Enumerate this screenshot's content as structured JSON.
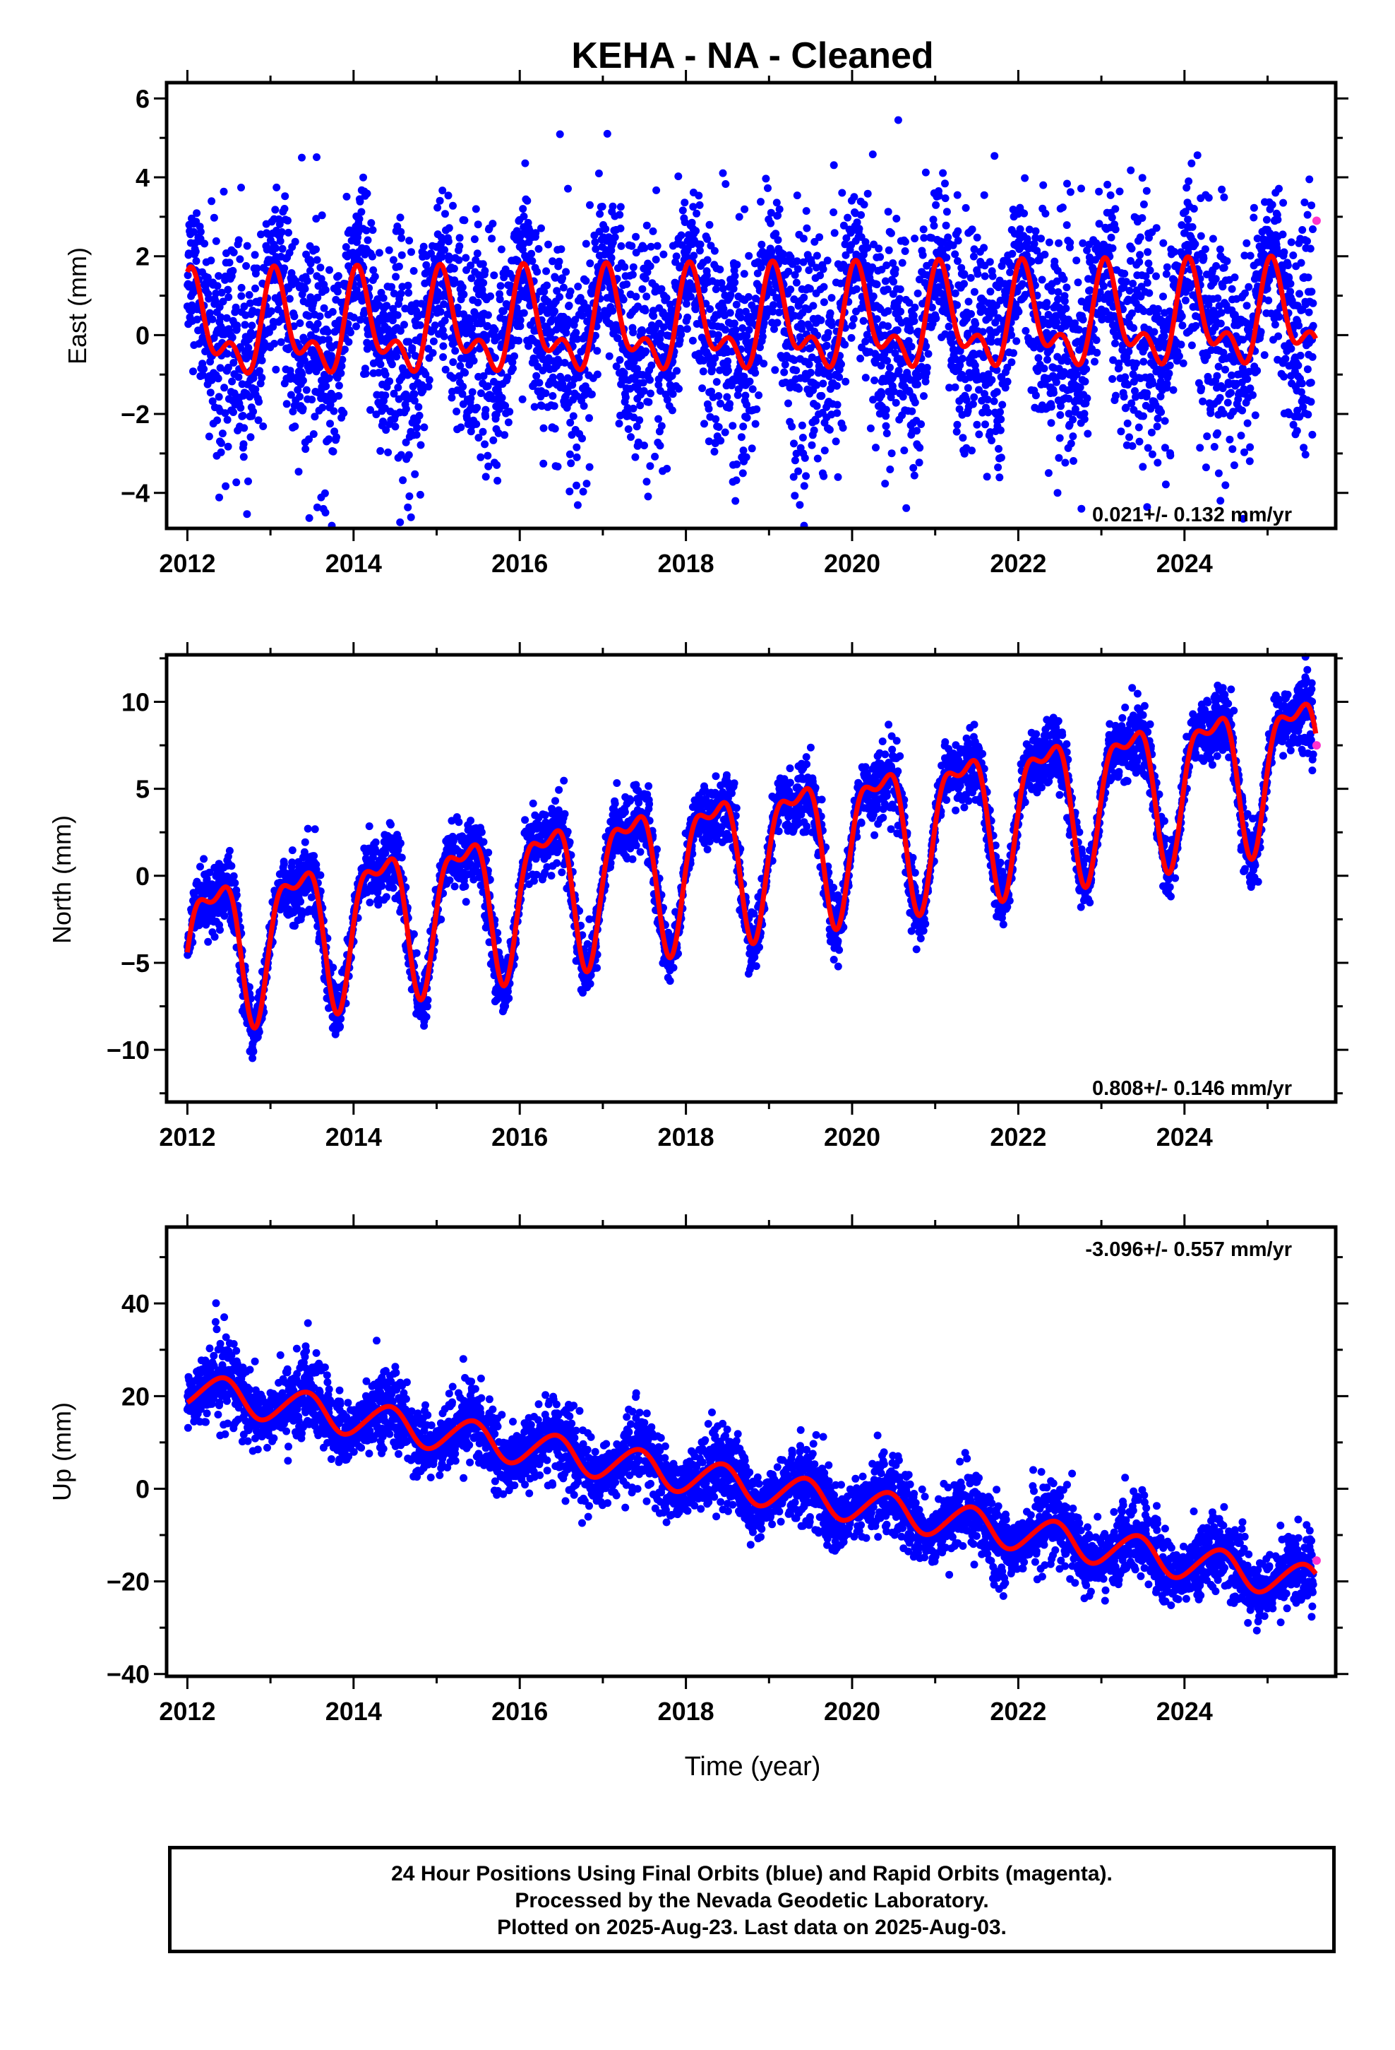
{
  "title": "KEHA  - NA - Cleaned",
  "xlabel": "Time (year)",
  "xticks": [
    "2012",
    "2014",
    "2016",
    "2018",
    "2020",
    "2022",
    "2024"
  ],
  "caption": {
    "line1": "24 Hour Positions Using Final Orbits (blue) and Rapid Orbits (magenta).",
    "line2": "Processed by the Nevada Geodetic Laboratory.",
    "line3": "Plotted on 2025-Aug-23. Last data on 2025-Aug-03."
  },
  "colors": {
    "final": "#0000ff",
    "rapid": "#ff33cc",
    "fit": "#ff0000",
    "frame": "#000000"
  },
  "chart_data": [
    {
      "type": "scatter",
      "ylabel": "East (mm)",
      "rate_label": "0.021+/- 0.132 mm/yr",
      "xlim": [
        2011.75,
        2025.82
      ],
      "ylim": [
        -4.9,
        6.4
      ],
      "yticks": [
        -4,
        -2,
        0,
        2,
        4,
        6
      ],
      "model": {
        "trend_mm_per_yr": 0.021,
        "intercept_mm": 0.1,
        "seasonal": [
          0.9,
          0.45,
          0.6,
          0.25
        ],
        "scatter_sd_mm": 1.2,
        "notes": "dense daily points 2012.0-2025.6"
      },
      "series": [
        {
          "name": "Final Orbits (blue)",
          "color": "#0000ff",
          "x_range": [
            2012.0,
            2025.55
          ]
        },
        {
          "name": "Rapid Orbits (magenta)",
          "color": "#ff33cc",
          "x": [
            2025.59
          ],
          "y": [
            2.9
          ]
        }
      ]
    },
    {
      "type": "scatter",
      "ylabel": "North (mm)",
      "rate_label": "0.808+/- 0.146 mm/yr",
      "xlim": [
        2011.75,
        2025.82
      ],
      "ylim": [
        -13.0,
        12.7
      ],
      "yticks": [
        -10,
        -5,
        0,
        5,
        10
      ],
      "model": {
        "trend_mm_per_yr": 0.808,
        "intercept_mm": -4.0,
        "seasonal": [
          -1.6,
          3.5,
          1.2,
          1.0
        ],
        "scatter_sd_mm": 0.8
      },
      "series": [
        {
          "name": "Final Orbits (blue)",
          "color": "#0000ff",
          "x_range": [
            2012.0,
            2025.55
          ]
        },
        {
          "name": "Rapid Orbits (magenta)",
          "color": "#ff33cc",
          "x": [
            2025.59
          ],
          "y": [
            7.5
          ]
        }
      ]
    },
    {
      "type": "scatter",
      "ylabel": "Up (mm)",
      "rate_label": "-3.096+/- 0.557 mm/yr",
      "xlim": [
        2011.75,
        2025.82
      ],
      "ylim": [
        -40.5,
        56.5
      ],
      "yticks": [
        -40,
        -20,
        0,
        20,
        40
      ],
      "model": {
        "trend_mm_per_yr": -3.096,
        "intercept_mm": 21.5,
        "seasonal": [
          -3.2,
          2.0,
          0.3,
          0.2
        ],
        "scatter_sd_mm": 3.5
      },
      "series": [
        {
          "name": "Final Orbits (blue)",
          "color": "#0000ff",
          "x_range": [
            2012.0,
            2025.55
          ]
        },
        {
          "name": "Rapid Orbits (magenta)",
          "color": "#ff33cc",
          "x": [
            2025.59
          ],
          "y": [
            -15.5
          ]
        }
      ]
    }
  ]
}
